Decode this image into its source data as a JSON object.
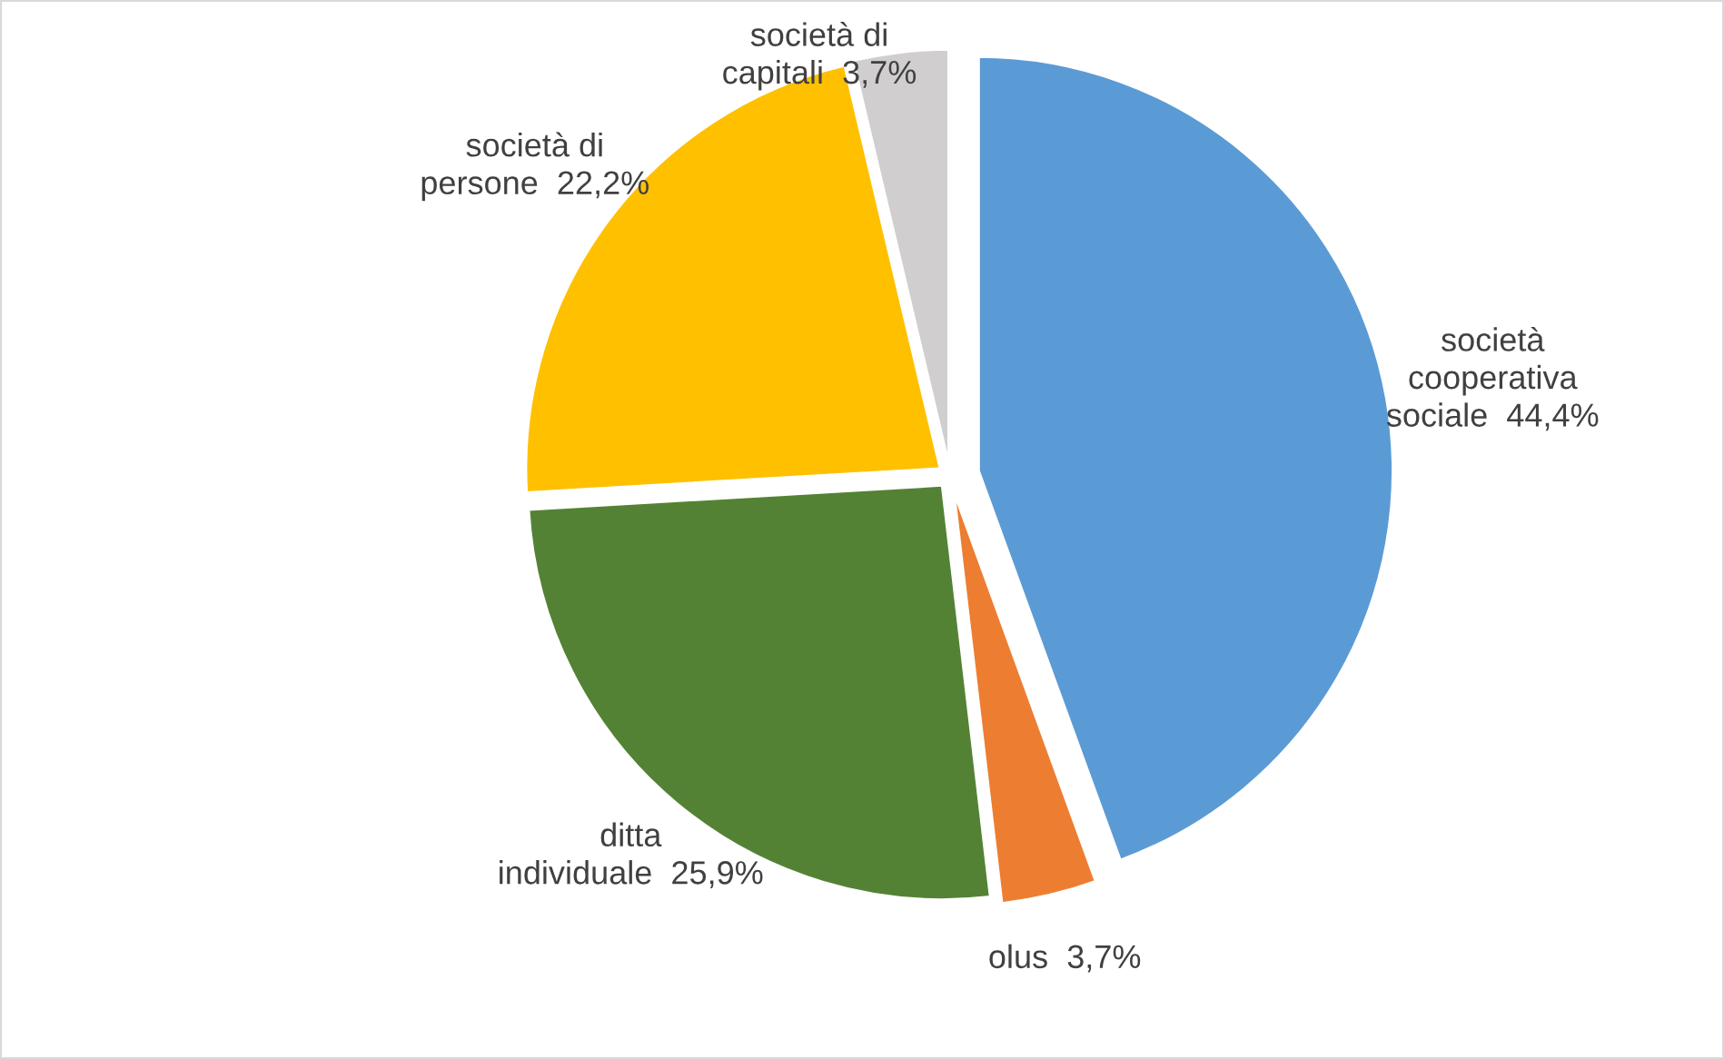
{
  "chart_data": {
    "type": "pie",
    "categories": [
      "società\ncooperativa\nsociale",
      "olus",
      "ditta\nindividuale",
      "società di\npersone",
      "società di\ncapitali"
    ],
    "values": [
      44.4,
      3.7,
      25.9,
      22.2,
      3.7
    ],
    "value_labels": [
      "44,4%",
      "3,7%",
      "25,9%",
      "22,2%",
      "3,7%"
    ],
    "colors": [
      "#5b9bd5",
      "#ed7d31",
      "#548235",
      "#ffc000",
      "#d0cece"
    ],
    "legend": false
  }
}
